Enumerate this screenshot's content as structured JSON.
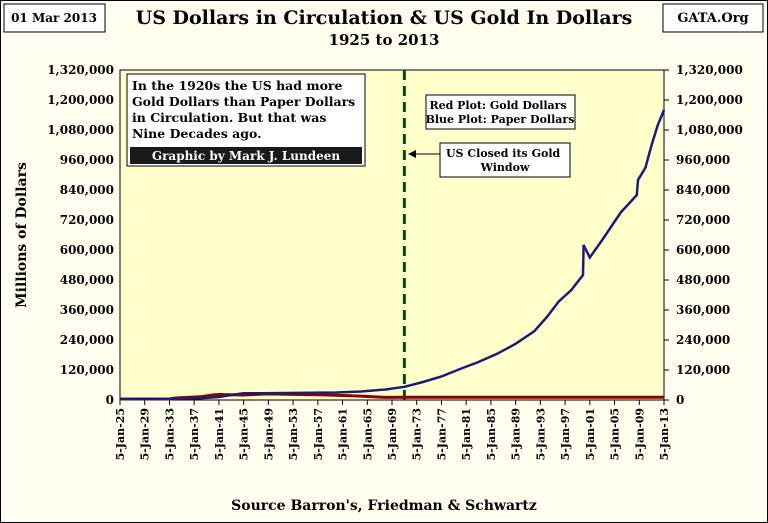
{
  "header": {
    "date": "01 Mar 2013",
    "source": "GATA.Org",
    "title": "US Dollars in Circulation & US Gold In Dollars",
    "subtitle": "1925 to 2013"
  },
  "notes": {
    "intro": [
      "In the 1920s the US had more",
      "Gold Dollars than Paper Dollars",
      "in Circulation.  But that was",
      "Nine Decades ago."
    ],
    "credit": "Graphic by Mark J. Lundeen",
    "legend": [
      "Red Plot: Gold Dollars",
      "Blue Plot: Paper Dollars"
    ],
    "closed": [
      "US Closed its Gold",
      "Window"
    ]
  },
  "chart_data": {
    "type": "line",
    "title": "US Dollars in Circulation & US Gold In Dollars",
    "subtitle": "1925 to 2013",
    "ylabel": "Millions of Dollars",
    "xlabel": "Source Barron's,  Friedman & Schwartz",
    "ylim": [
      0,
      1320000
    ],
    "xlim": [
      1925,
      2013
    ],
    "yticks": [
      0,
      120000,
      240000,
      360000,
      480000,
      600000,
      720000,
      840000,
      960000,
      1080000,
      1200000,
      1320000
    ],
    "ytick_labels": [
      "0",
      "120,000",
      "240,000",
      "360,000",
      "480,000",
      "600,000",
      "720,000",
      "840,000",
      "960,000",
      "1,080,000",
      "1,200,000",
      "1,320,000"
    ],
    "xtick_labels": [
      "5-Jan-25",
      "5-Jan-29",
      "5-Jan-33",
      "5-Jan-37",
      "5-Jan-41",
      "5-Jan-45",
      "5-Jan-49",
      "5-Jan-53",
      "5-Jan-57",
      "5-Jan-61",
      "5-Jan-65",
      "5-Jan-69",
      "5-Jan-73",
      "5-Jan-77",
      "5-Jan-81",
      "5-Jan-85",
      "5-Jan-89",
      "5-Jan-93",
      "5-Jan-97",
      "5-Jan-01",
      "5-Jan-05",
      "5-Jan-09",
      "5-Jan-13"
    ],
    "xtick_years": [
      1925,
      1929,
      1933,
      1937,
      1941,
      1945,
      1949,
      1953,
      1957,
      1961,
      1965,
      1969,
      1973,
      1977,
      1981,
      1985,
      1989,
      1993,
      1997,
      2001,
      2005,
      2009,
      2013
    ],
    "event_line_year": 1971,
    "series": [
      {
        "name": "Paper Dollars",
        "color": "#1a1a7a",
        "x": [
          1925,
          1930,
          1934,
          1938,
          1941,
          1943,
          1945,
          1948,
          1952,
          1956,
          1960,
          1964,
          1968,
          1971,
          1974,
          1977,
          1980,
          1983,
          1986,
          1989,
          1992,
          1994,
          1996,
          1998,
          1999.9,
          2000,
          2001,
          2003,
          2006,
          2008.6,
          2008.8,
          2010,
          2011,
          2012,
          2013
        ],
        "y": [
          4000,
          4000,
          5000,
          7000,
          12000,
          20000,
          27000,
          27000,
          28000,
          29000,
          30000,
          34000,
          42000,
          53000,
          72000,
          94000,
          124000,
          152000,
          185000,
          225000,
          275000,
          330000,
          395000,
          440000,
          500000,
          620000,
          570000,
          640000,
          750000,
          820000,
          880000,
          930000,
          1020000,
          1100000,
          1160000
        ]
      },
      {
        "name": "Gold Dollars",
        "color": "#8b0000",
        "x": [
          1925,
          1933,
          1934,
          1938,
          1940,
          1941,
          1945,
          1949,
          1952,
          1958,
          1964,
          1968,
          1971,
          1980,
          1990,
          2000,
          2013
        ],
        "y": [
          4000,
          4000,
          8000,
          13000,
          20000,
          22000,
          20000,
          24500,
          23000,
          20500,
          15500,
          10500,
          11000,
          11000,
          11000,
          11000,
          11000
        ]
      }
    ],
    "grid": false,
    "legend": "top-right"
  }
}
